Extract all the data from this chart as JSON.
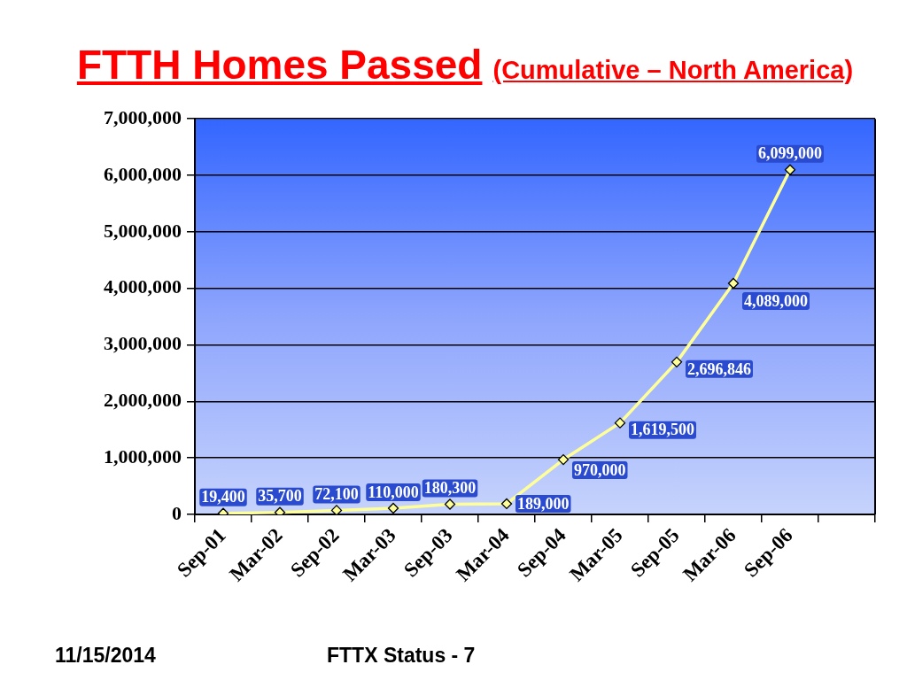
{
  "chart_data": {
    "type": "line",
    "title": "FTTH Homes Passed",
    "subtitle": "(Cumulative – North America)",
    "categories": [
      "Sep-01",
      "Mar-02",
      "Sep-02",
      "Mar-03",
      "Sep-03",
      "Mar-04",
      "Sep-04",
      "Mar-05",
      "Sep-05",
      "Mar-06",
      "Sep-06",
      null
    ],
    "values": [
      19400,
      35700,
      72100,
      110000,
      180300,
      189000,
      970000,
      1619500,
      2696846,
      4089000,
      6099000,
      null
    ],
    "value_labels": [
      "19,400",
      "35,700",
      "72,100",
      "110,000",
      "180,300",
      "189,000",
      "970,000",
      "1,619,500",
      "2,696,846",
      "4,089,000",
      "6,099,000",
      null
    ],
    "color": "#ffff99",
    "marker": "diamond",
    "ylim": [
      0,
      7000000
    ],
    "yticks": [
      0,
      {
        "value": 1000000,
        "label": "1,000,000"
      },
      {
        "value": 2000000,
        "label": "2,000,000"
      },
      {
        "value": 3000000,
        "label": "3,000,000"
      },
      {
        "value": 4000000,
        "label": "4,000,000"
      },
      {
        "value": 5000000,
        "label": "5,000,000"
      },
      {
        "value": 6000000,
        "label": "6,000,000"
      },
      {
        "value": 7000000,
        "label": "7,000,000"
      }
    ],
    "grid": "y",
    "annotations": [
      "11/15/2014",
      "FTTX Status - 7"
    ]
  }
}
